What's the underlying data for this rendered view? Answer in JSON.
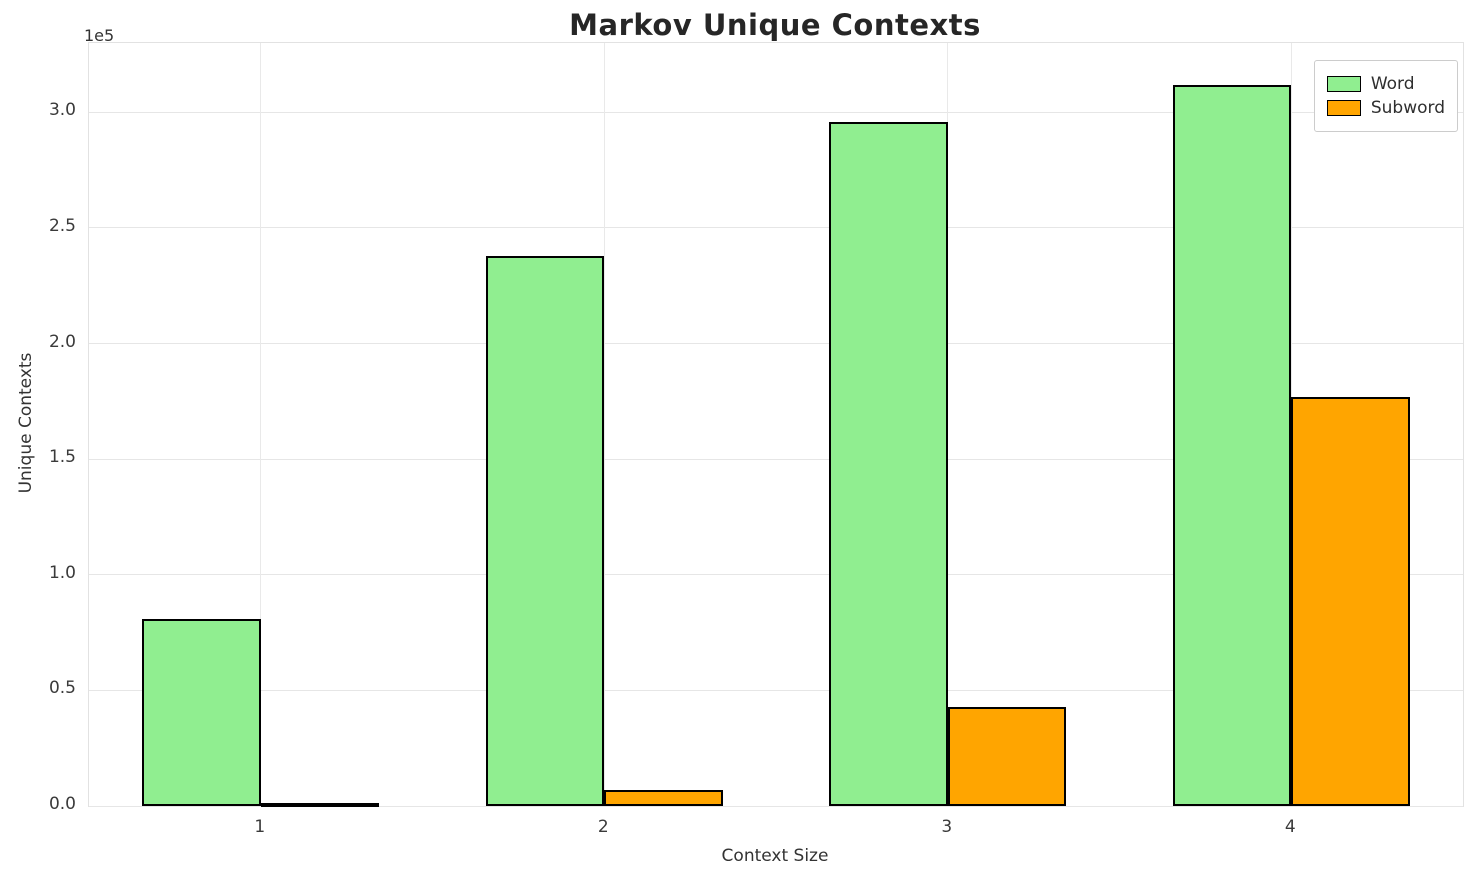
{
  "chart_data": {
    "type": "bar",
    "title": "Markov Unique Contexts",
    "xlabel": "Context Size",
    "ylabel": "Unique Contexts",
    "offset_text": "1e5",
    "categories": [
      "1",
      "2",
      "3",
      "4"
    ],
    "series": [
      {
        "name": "Word",
        "color": "#90EE90",
        "values": [
          81000,
          238000,
          296000,
          312000
        ]
      },
      {
        "name": "Subword",
        "color": "#FFA500",
        "values": [
          1000,
          7000,
          43000,
          177000
        ]
      }
    ],
    "ylim": [
      0,
      330000
    ],
    "yticks": [
      0,
      50000,
      100000,
      150000,
      200000,
      250000,
      300000
    ],
    "ytick_labels": [
      "0.0",
      "0.5",
      "1.0",
      "1.5",
      "2.0",
      "2.5",
      "3.0"
    ],
    "grid": true,
    "legend_position": "upper right",
    "bar_edge_color": "#000000",
    "background_color": "#ffffff"
  }
}
